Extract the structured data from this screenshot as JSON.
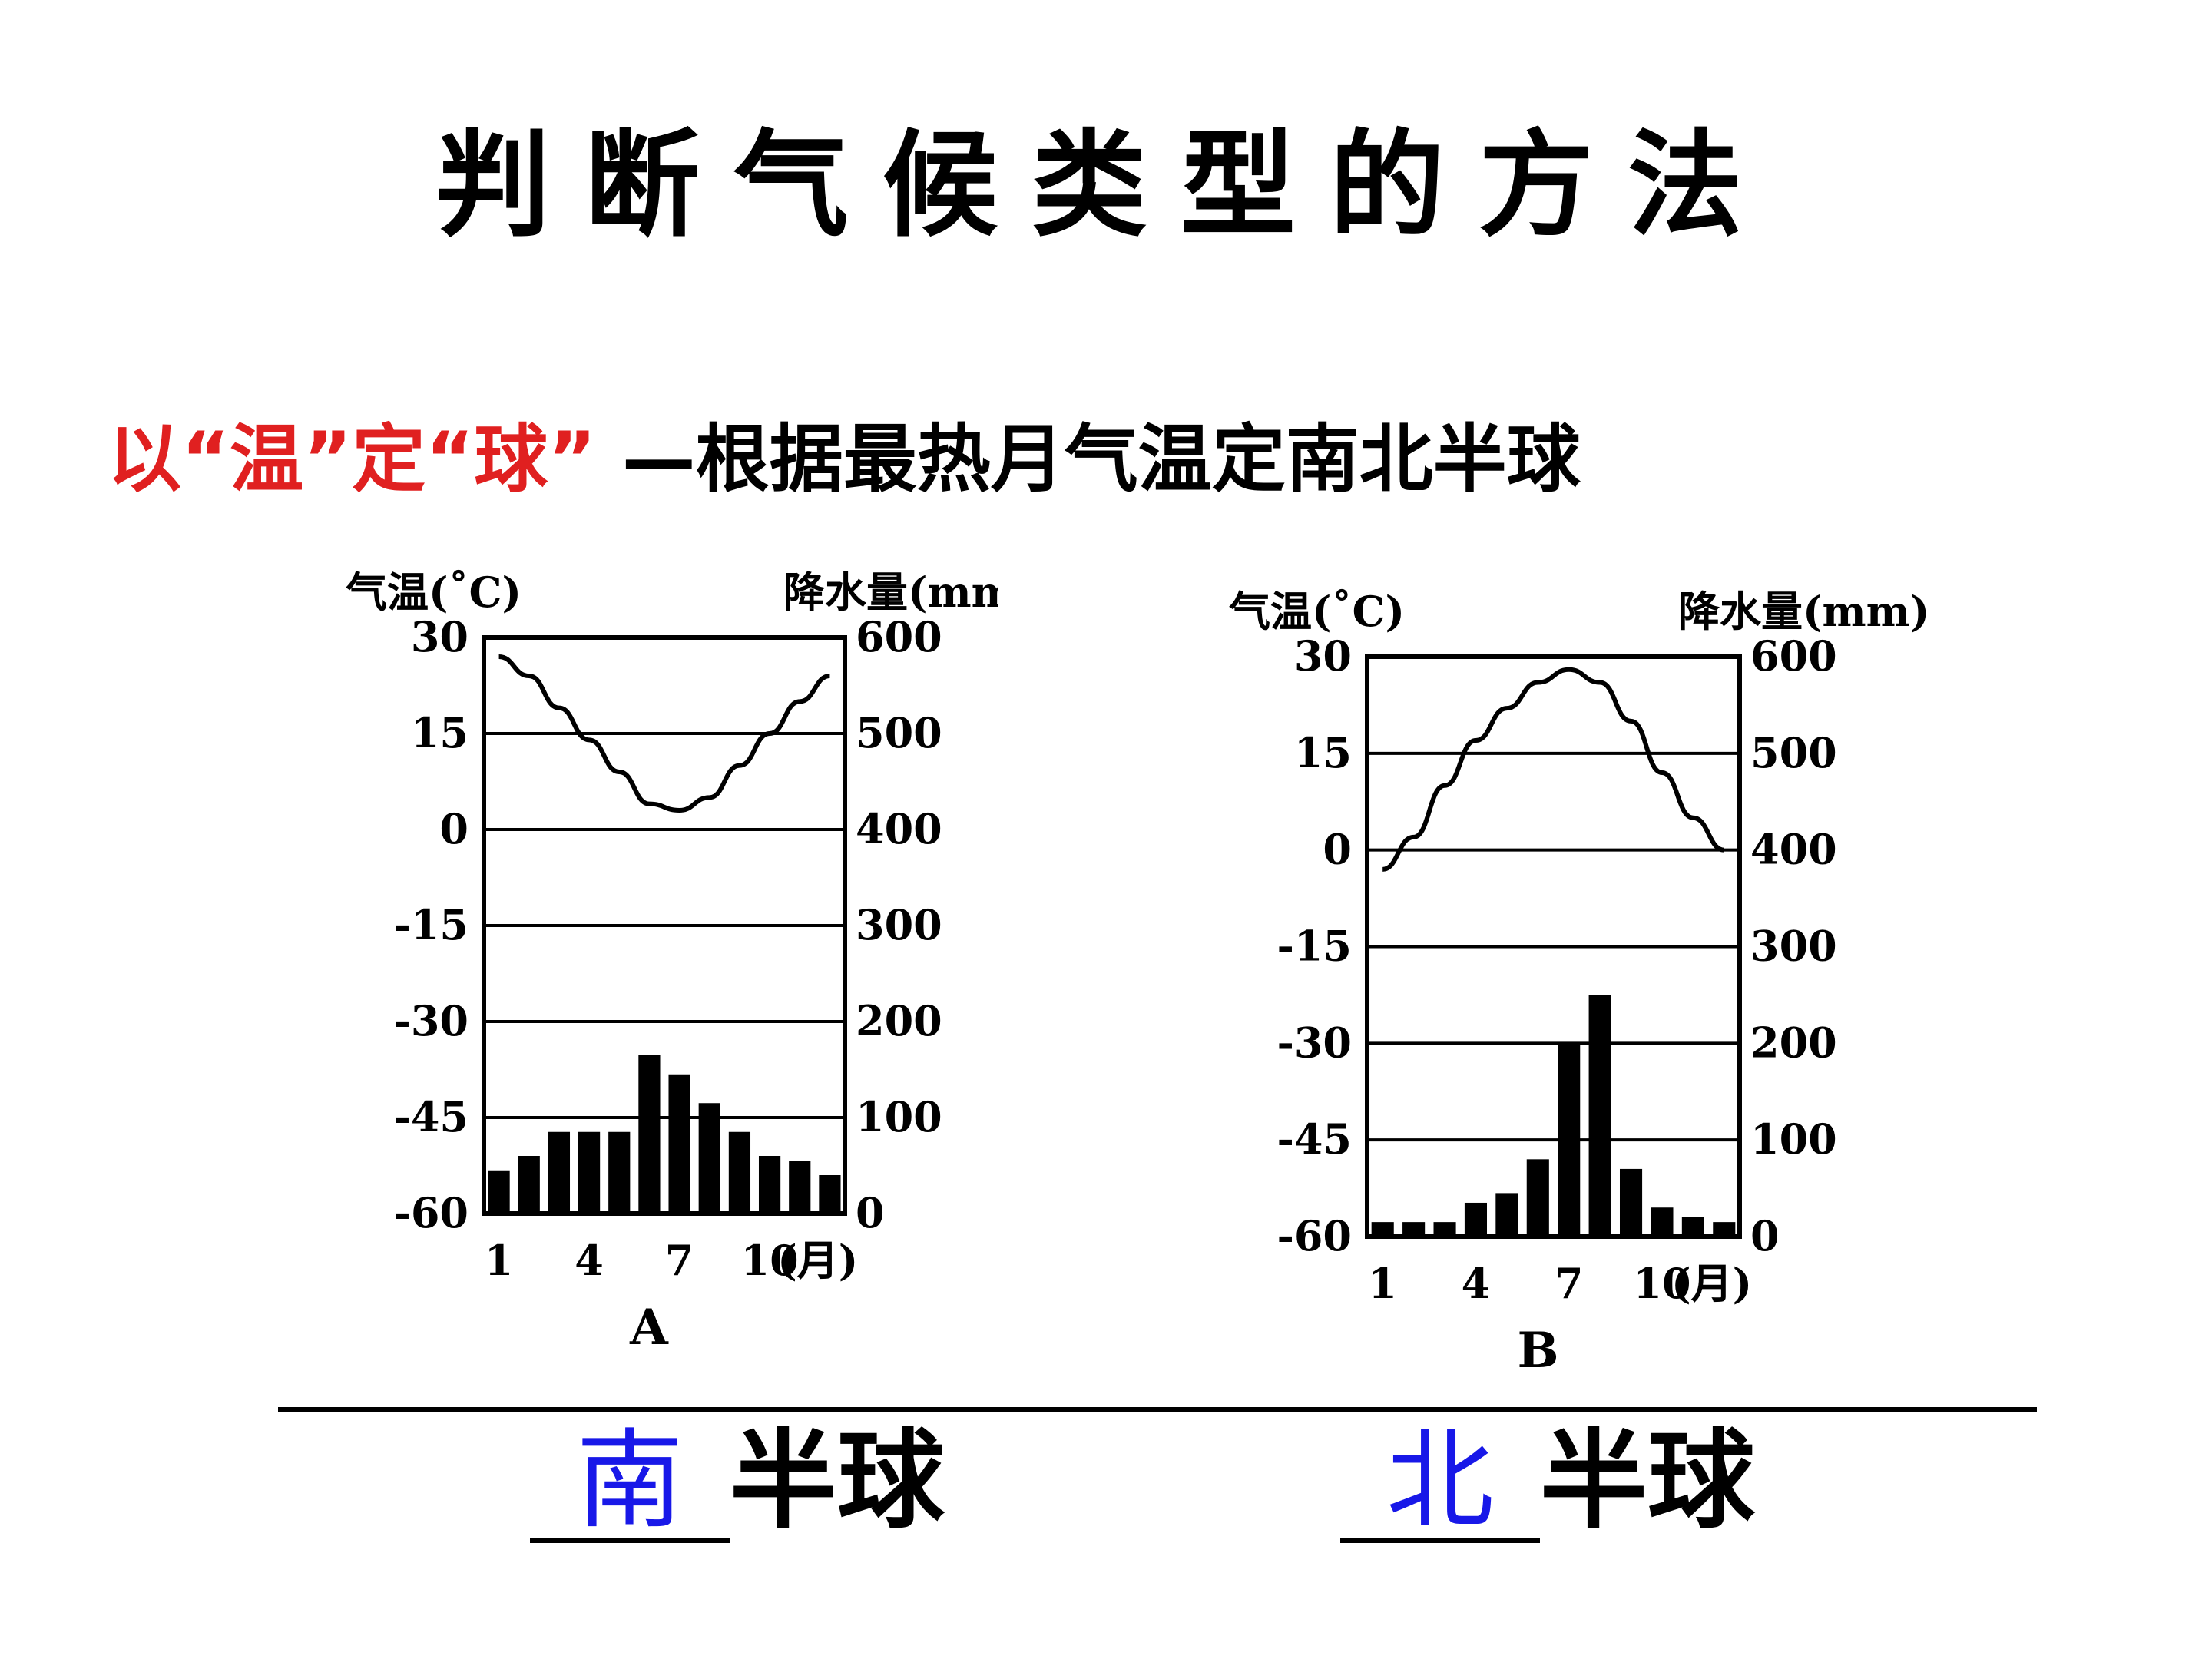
{
  "title": "判断气候类型的方法",
  "subtitle": {
    "red": "以“温”定“球”",
    "rest": " —根据最热月气温定南北半球"
  },
  "chart_data": [
    {
      "type": "bar+line",
      "label": "A",
      "y_left_label": "气温(˚C)",
      "y_right_label": "降水量(mm)",
      "y_left_ticks": [
        "30",
        "15",
        "0",
        "-15",
        "-30",
        "-45",
        "-60"
      ],
      "y_right_ticks": [
        "600",
        "500",
        "400",
        "300",
        "200",
        "100",
        "0"
      ],
      "x_ticks": [
        "1",
        "4",
        "7",
        "10"
      ],
      "x_unit": "(月)",
      "y_left_range": [
        -60,
        30
      ],
      "y_right_range": [
        0,
        600
      ],
      "months": [
        1,
        2,
        3,
        4,
        5,
        6,
        7,
        8,
        9,
        10,
        11,
        12
      ],
      "temperature": [
        27,
        24,
        19,
        14,
        9,
        4,
        3,
        5,
        10,
        15,
        20,
        24
      ],
      "precipitation": [
        45,
        60,
        85,
        85,
        85,
        165,
        145,
        115,
        85,
        60,
        55,
        40
      ]
    },
    {
      "type": "bar+line",
      "label": "B",
      "y_left_label": "气温(˚C)",
      "y_right_label": "降水量(mm)",
      "y_left_ticks": [
        "30",
        "15",
        "0",
        "-15",
        "-30",
        "-45",
        "-60"
      ],
      "y_right_ticks": [
        "600",
        "500",
        "400",
        "300",
        "200",
        "100",
        "0"
      ],
      "x_ticks": [
        "1",
        "4",
        "7",
        "10"
      ],
      "x_unit": "(月)",
      "y_left_range": [
        -60,
        30
      ],
      "y_right_range": [
        0,
        600
      ],
      "months": [
        1,
        2,
        3,
        4,
        5,
        6,
        7,
        8,
        9,
        10,
        11,
        12
      ],
      "temperature": [
        -3,
        2,
        10,
        17,
        22,
        26,
        28,
        26,
        20,
        12,
        5,
        0
      ],
      "precipitation": [
        15,
        15,
        15,
        35,
        45,
        80,
        200,
        250,
        70,
        30,
        20,
        15
      ]
    }
  ],
  "answers": [
    {
      "fill": "南",
      "suffix": "半球"
    },
    {
      "fill": "北",
      "suffix": "半球"
    }
  ]
}
